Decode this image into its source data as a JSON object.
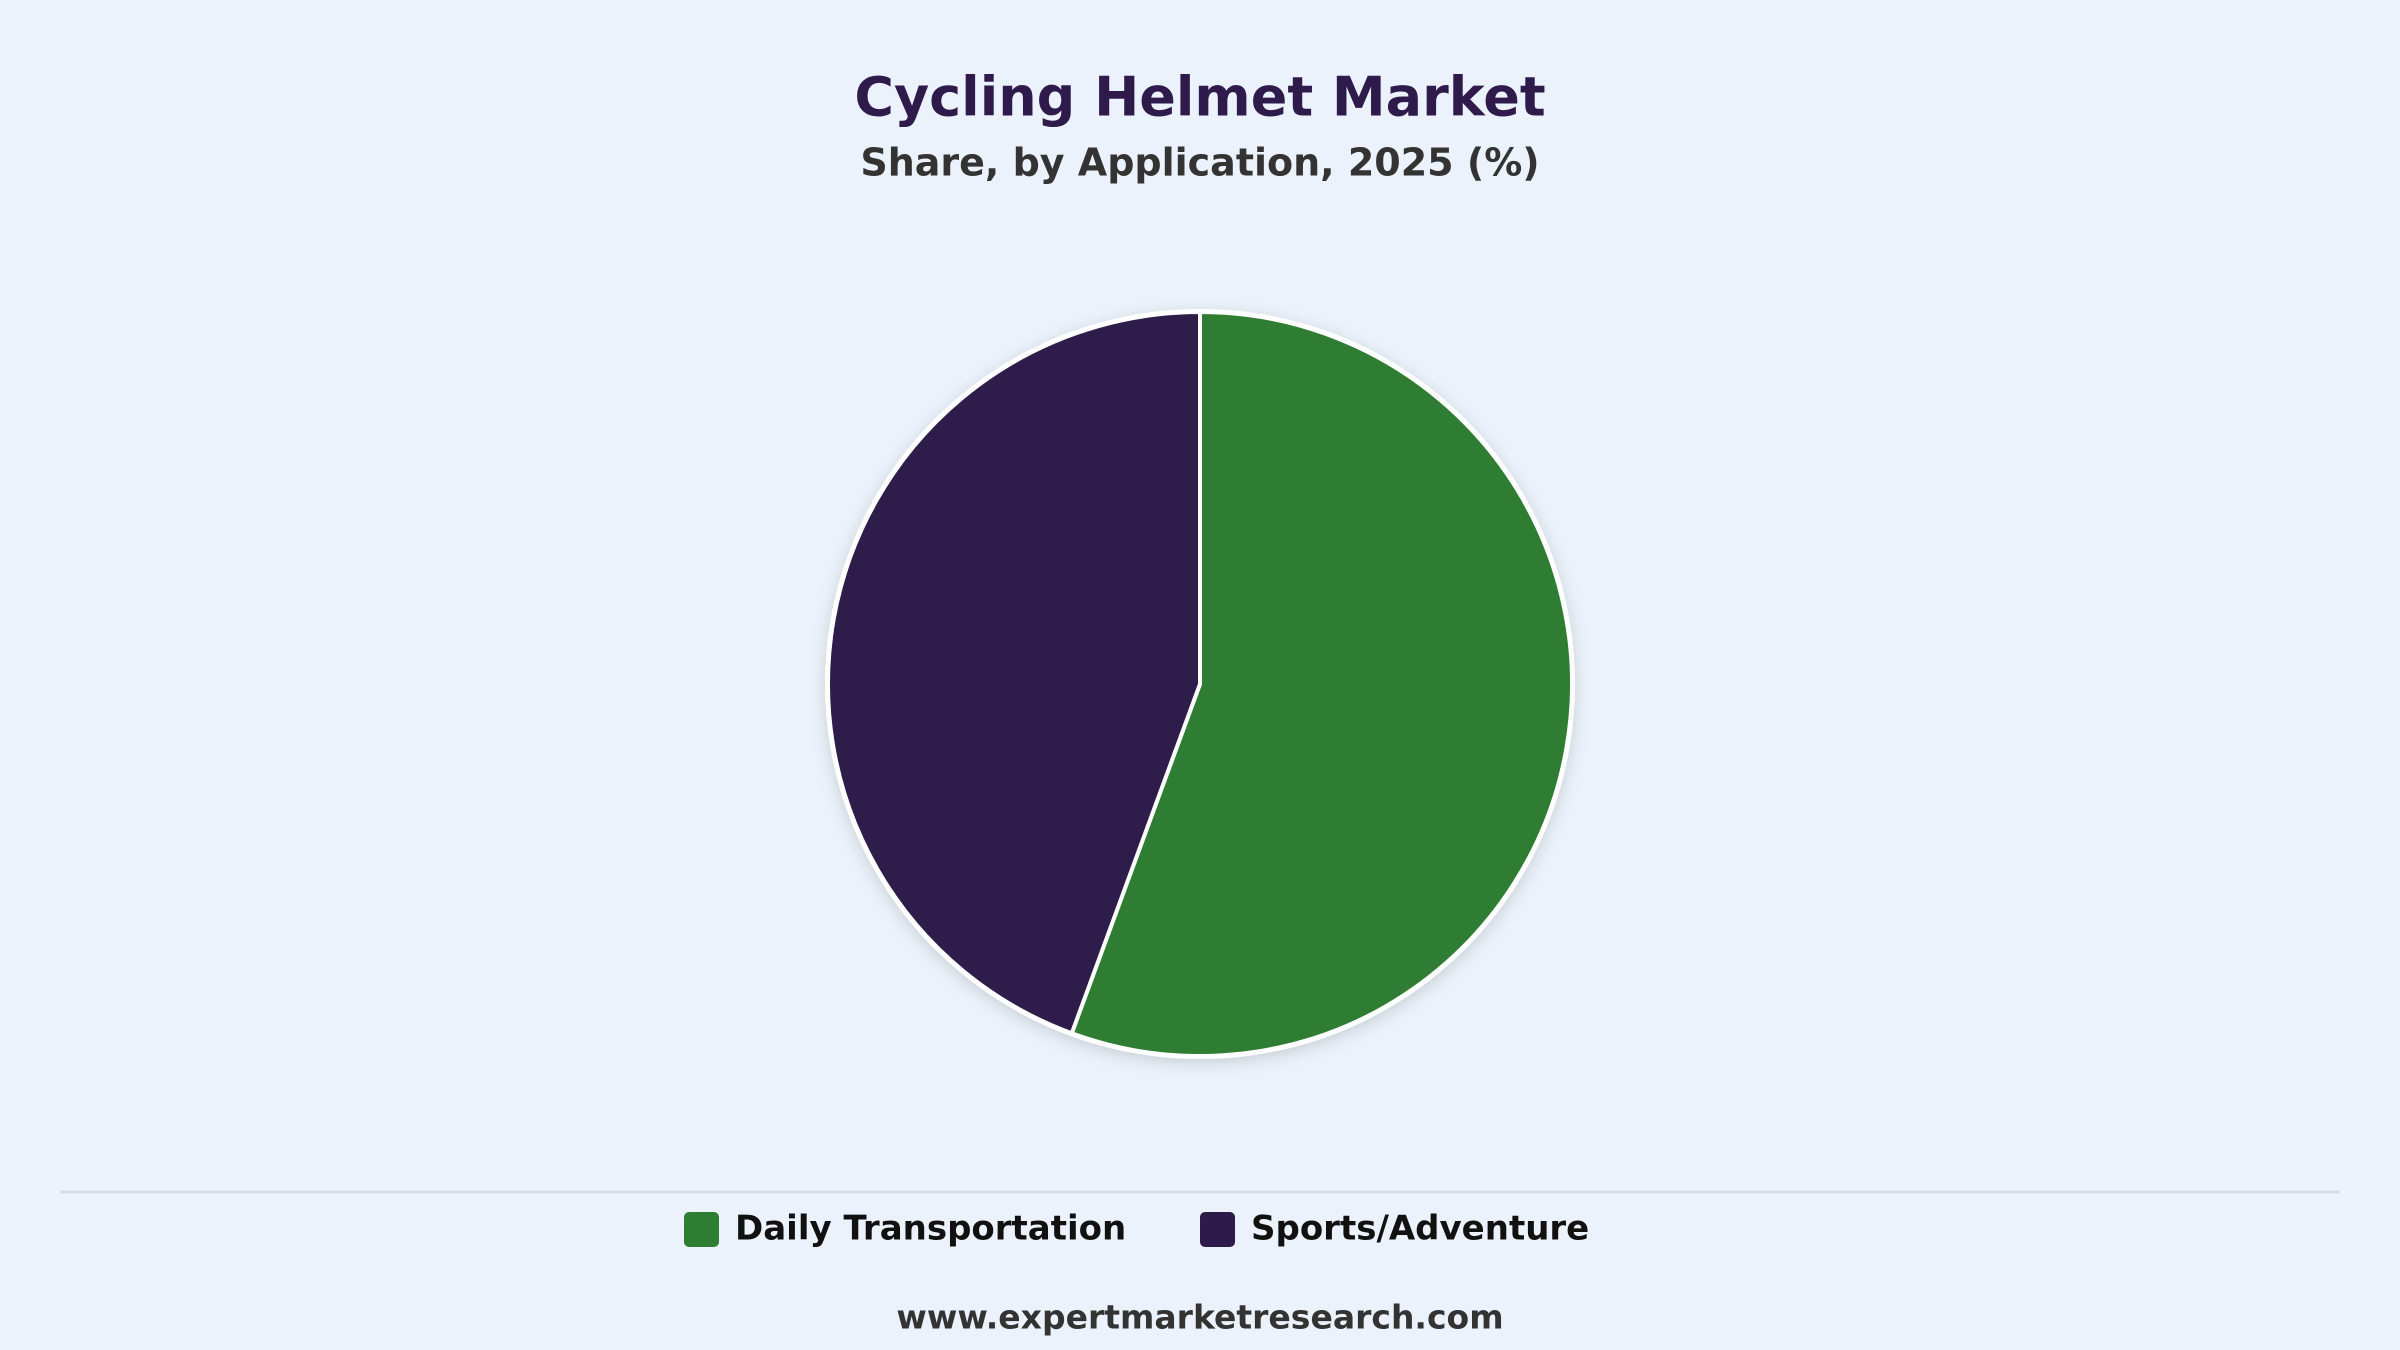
{
  "chart_data": {
    "type": "pie",
    "title": "Cycling Helmet Market",
    "subtitle": "Share, by Application, 2025 (%)",
    "categories": [
      "Daily Transportation",
      "Sports/Adventure"
    ],
    "values": [
      55.6,
      44.4
    ],
    "colors": [
      "#2f7d32",
      "#2e1a4b"
    ],
    "legend": "bottom",
    "source": "www.expertmarketresearch.com"
  }
}
